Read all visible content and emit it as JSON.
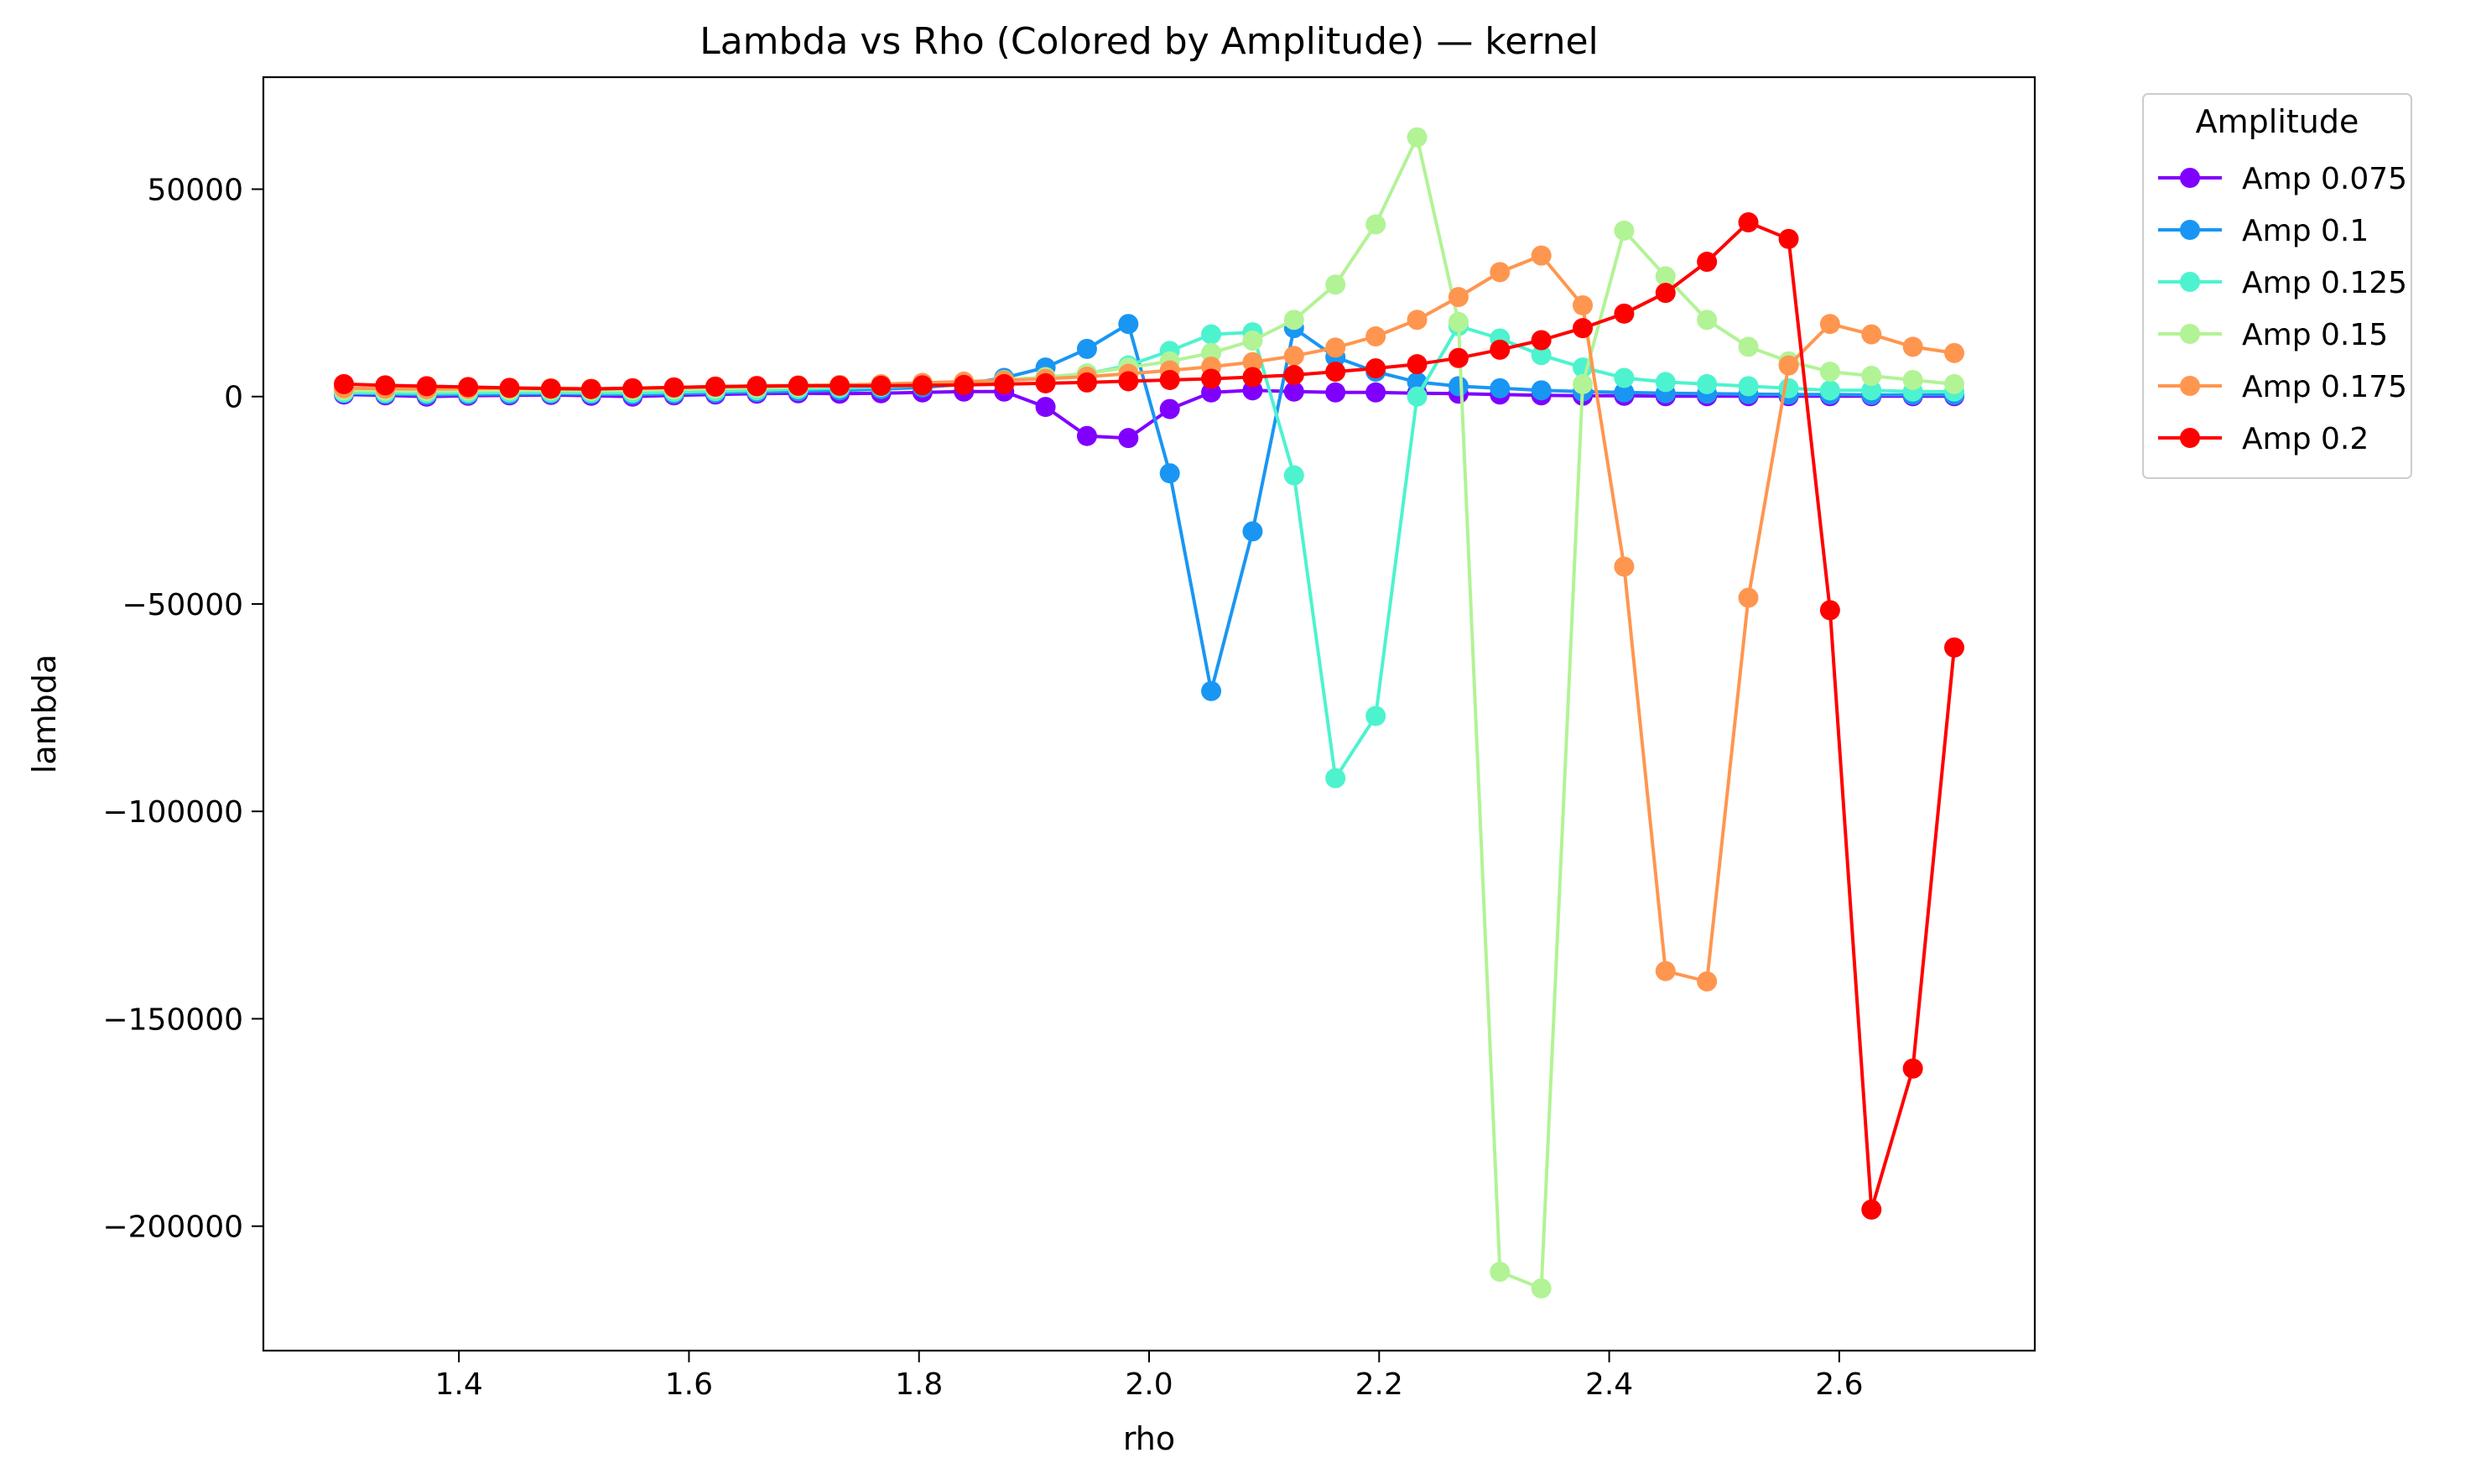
{
  "chart_data": {
    "type": "line",
    "title": "Lambda vs Rho (Colored by Amplitude) — kernel",
    "xlabel": "rho",
    "ylabel": "lambda",
    "xlim": [
      1.23,
      2.77
    ],
    "ylim": [
      -230000,
      77000
    ],
    "xticks": [
      1.4,
      1.6,
      1.8,
      2.0,
      2.2,
      2.4,
      2.6
    ],
    "xtick_labels": [
      "1.4",
      "1.6",
      "1.8",
      "2.0",
      "2.2",
      "2.4",
      "2.6"
    ],
    "yticks": [
      50000,
      0,
      -50000,
      -100000,
      -150000,
      -200000
    ],
    "ytick_labels": [
      "50000",
      "0",
      "−50000",
      "−100000",
      "−150000",
      "−200000"
    ],
    "grid": false,
    "legend": {
      "title": "Amplitude",
      "placement": "outside-right-top"
    },
    "x": [
      1.3,
      1.336,
      1.372,
      1.408,
      1.444,
      1.48,
      1.515,
      1.551,
      1.587,
      1.623,
      1.659,
      1.695,
      1.731,
      1.767,
      1.803,
      1.839,
      1.874,
      1.91,
      1.946,
      1.982,
      2.018,
      2.054,
      2.09,
      2.126,
      2.162,
      2.197,
      2.233,
      2.269,
      2.305,
      2.341,
      2.377,
      2.413,
      2.449,
      2.485,
      2.521,
      2.556,
      2.592,
      2.628,
      2.664,
      2.7
    ],
    "series": [
      {
        "name": "Amp 0.075",
        "color": "#8000ff",
        "values": [
          500,
          300,
          0,
          200,
          300,
          400,
          200,
          0,
          300,
          500,
          700,
          800,
          700,
          800,
          1000,
          1200,
          1200,
          -2500,
          -9500,
          -10000,
          -3000,
          1000,
          1500,
          1200,
          1000,
          1000,
          800,
          700,
          500,
          300,
          200,
          200,
          100,
          100,
          100,
          100,
          100,
          100,
          100,
          100
        ]
      },
      {
        "name": "Amp 0.1",
        "color": "#1996f3",
        "values": [
          800,
          600,
          400,
          500,
          600,
          700,
          600,
          500,
          700,
          900,
          1100,
          1300,
          1500,
          1800,
          2200,
          3000,
          4500,
          7000,
          11500,
          17500,
          -18500,
          -71000,
          -32500,
          16500,
          9500,
          6000,
          3500,
          2500,
          2000,
          1500,
          1200,
          1000,
          800,
          700,
          600,
          500,
          500,
          400,
          400,
          400
        ]
      },
      {
        "name": "Amp 0.125",
        "color": "#4df3ce",
        "values": [
          1000,
          900,
          800,
          900,
          1000,
          1000,
          900,
          900,
          1100,
          1300,
          1500,
          1800,
          2000,
          2300,
          2700,
          3300,
          3800,
          4500,
          5500,
          7500,
          11000,
          15000,
          15500,
          -19000,
          -92000,
          -77000,
          0,
          17000,
          14000,
          10000,
          7000,
          4500,
          3500,
          3000,
          2500,
          2000,
          1500,
          1500,
          1200,
          1200
        ]
      },
      {
        "name": "Amp 0.15",
        "color": "#b2f396",
        "values": [
          1500,
          1400,
          1300,
          1400,
          1500,
          1500,
          1400,
          1500,
          1700,
          1900,
          2100,
          2300,
          2500,
          2700,
          3000,
          3500,
          4000,
          4700,
          5600,
          7000,
          8500,
          10500,
          13500,
          18500,
          27000,
          41500,
          62500,
          18000,
          -211000,
          -215000,
          3000,
          40000,
          29000,
          18500,
          12000,
          8500,
          6000,
          5000,
          4000,
          3000
        ]
      },
      {
        "name": "Amp 0.175",
        "color": "#ff964f",
        "values": [
          2000,
          1900,
          1800,
          1900,
          2000,
          2000,
          1900,
          2000,
          2200,
          2400,
          2600,
          2700,
          2800,
          3000,
          3300,
          3600,
          3900,
          4300,
          4800,
          5500,
          6300,
          7200,
          8300,
          9800,
          11800,
          14500,
          18500,
          24000,
          30000,
          34000,
          22000,
          -41000,
          -138500,
          -141000,
          -48500,
          7500,
          17500,
          15000,
          12000,
          10500
        ]
      },
      {
        "name": "Amp 0.2",
        "color": "#ff0000",
        "values": [
          3000,
          2700,
          2500,
          2300,
          2100,
          1900,
          1800,
          2000,
          2200,
          2400,
          2500,
          2600,
          2600,
          2600,
          2700,
          2800,
          3000,
          3200,
          3400,
          3700,
          4000,
          4300,
          4700,
          5200,
          6000,
          6800,
          7800,
          9300,
          11300,
          13600,
          16500,
          20000,
          25000,
          32500,
          42000,
          38000,
          -51500,
          -196000,
          -162000,
          -60500
        ]
      }
    ]
  }
}
